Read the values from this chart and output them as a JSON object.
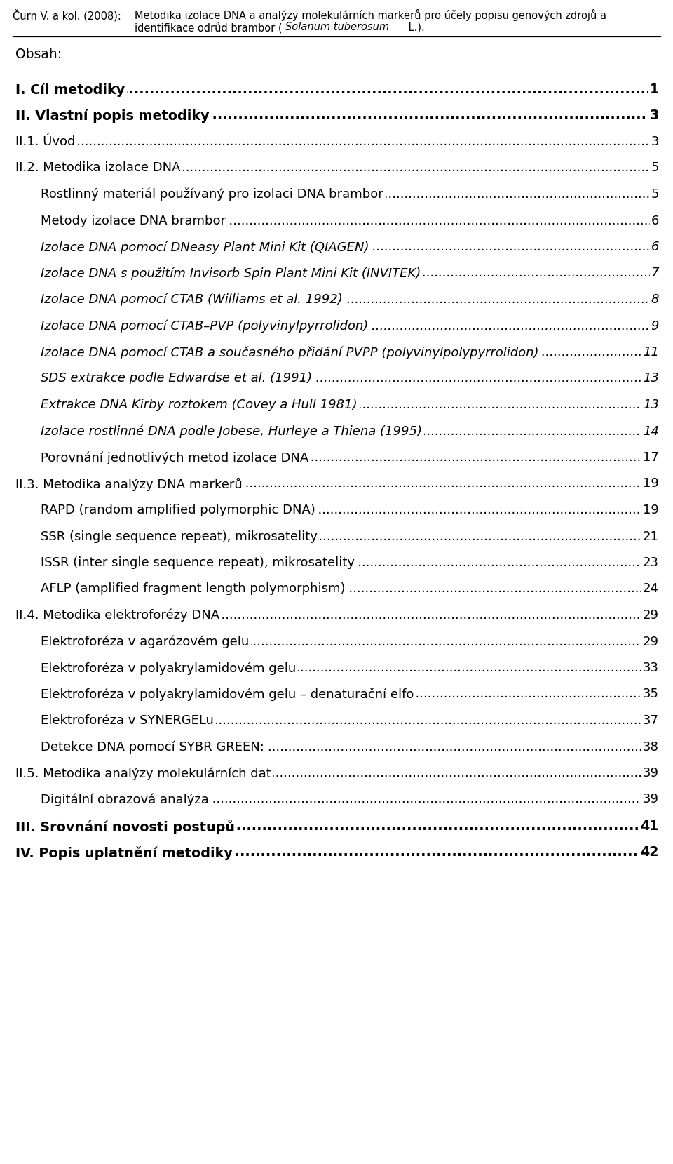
{
  "bg_color": "#ffffff",
  "text_color": "#000000",
  "header_author": "Čurn V. a kol. (2008):",
  "header_title_line1": "Metodika izolace DNA a analýzy molekulárních markerů pro účely popisu genových zdrojů a",
  "header_title_line2_pre": "identifikace odrůd brambor (",
  "header_title_line2_italic": "Solanum tuberosum",
  "header_title_line2_post": " L.).",
  "obsah": "Obsah:",
  "entries": [
    {
      "text": "I. Cíl metodiky",
      "page": "1",
      "bold": true,
      "italic": false,
      "indent": 0
    },
    {
      "text": "II. Vlastní popis metodiky",
      "page": "3",
      "bold": true,
      "italic": false,
      "indent": 0
    },
    {
      "text": "II.1. Úvod",
      "page": "3",
      "bold": false,
      "italic": false,
      "indent": 0
    },
    {
      "text": "II.2. Metodika izolace DNA",
      "page": "5",
      "bold": false,
      "italic": false,
      "indent": 0
    },
    {
      "text": "Rostlinný materiál používaný pro izolaci DNA brambor",
      "page": "5",
      "bold": false,
      "italic": false,
      "indent": 1
    },
    {
      "text": "Metody izolace DNA brambor",
      "page": "6",
      "bold": false,
      "italic": false,
      "indent": 1
    },
    {
      "text": "Izolace DNA pomocí DNeasy Plant Mini Kit (QIAGEN)",
      "page": "6",
      "bold": false,
      "italic": true,
      "indent": 1
    },
    {
      "text": "Izolace DNA s použitím Invisorb Spin Plant Mini Kit (INVITEK)",
      "page": "7",
      "bold": false,
      "italic": true,
      "indent": 1
    },
    {
      "text": "Izolace DNA pomocí CTAB (Williams et al. 1992)",
      "page": "8",
      "bold": false,
      "italic": true,
      "indent": 1
    },
    {
      "text": "Izolace DNA pomocí CTAB–PVP (polyvinylpyrrolidon)",
      "page": "9",
      "bold": false,
      "italic": true,
      "indent": 1
    },
    {
      "text": "Izolace DNA pomocí CTAB a současného přidání PVPP (polyvinylpolypyrrolidon)",
      "page": "11",
      "bold": false,
      "italic": true,
      "indent": 1
    },
    {
      "text": "SDS extrakce podle Edwardse et al. (1991)",
      "page": "13",
      "bold": false,
      "italic": true,
      "indent": 1
    },
    {
      "text": "Extrakce DNA Kirby roztokem (Covey a Hull 1981)",
      "page": "13",
      "bold": false,
      "italic": true,
      "indent": 1
    },
    {
      "text": "Izolace rostlinné DNA podle Jobese, Hurleye a Thiena (1995)",
      "page": "14",
      "bold": false,
      "italic": true,
      "indent": 1
    },
    {
      "text": "Porovnání jednotlivých metod izolace DNA",
      "page": "17",
      "bold": false,
      "italic": false,
      "indent": 1
    },
    {
      "text": "II.3. Metodika analýzy DNA markerů",
      "page": "19",
      "bold": false,
      "italic": false,
      "indent": 0
    },
    {
      "text": "RAPD (random amplified polymorphic DNA)",
      "page": "19",
      "bold": false,
      "italic": false,
      "indent": 1
    },
    {
      "text": "SSR (single sequence repeat), mikrosatelity",
      "page": "21",
      "bold": false,
      "italic": false,
      "indent": 1
    },
    {
      "text": "ISSR (inter single sequence repeat), mikrosatelity",
      "page": "23",
      "bold": false,
      "italic": false,
      "indent": 1
    },
    {
      "text": "AFLP (amplified fragment length polymorphism)",
      "page": "24",
      "bold": false,
      "italic": false,
      "indent": 1
    },
    {
      "text": "II.4. Metodika elektroforézy DNA",
      "page": "29",
      "bold": false,
      "italic": false,
      "indent": 0
    },
    {
      "text": "Elektroforéza v agarózovém gelu",
      "page": "29",
      "bold": false,
      "italic": false,
      "indent": 1
    },
    {
      "text": "Elektroforéza v polyakrylamidovém gelu",
      "page": "33",
      "bold": false,
      "italic": false,
      "indent": 1
    },
    {
      "text": "Elektroforéza v polyakrylamidovém gelu – denaturační elfo",
      "page": "35",
      "bold": false,
      "italic": false,
      "indent": 1
    },
    {
      "text": "Elektroforéza v SYNERGELu",
      "page": "37",
      "bold": false,
      "italic": false,
      "indent": 1
    },
    {
      "text": "Detekce DNA pomocí SYBR GREEN:",
      "page": "38",
      "bold": false,
      "italic": false,
      "indent": 1
    },
    {
      "text": "II.5. Metodika analýzy molekulárních dat",
      "page": "39",
      "bold": false,
      "italic": false,
      "indent": 0
    },
    {
      "text": "Digitální obrazová analýza",
      "page": "39",
      "bold": false,
      "italic": false,
      "indent": 1
    },
    {
      "text": "III. Srovnání novosti postupů",
      "page": "41",
      "bold": true,
      "italic": false,
      "indent": 0
    },
    {
      "text": "IV. Popis uplatnění metodiky",
      "page": "42",
      "bold": true,
      "italic": false,
      "indent": 0
    }
  ]
}
